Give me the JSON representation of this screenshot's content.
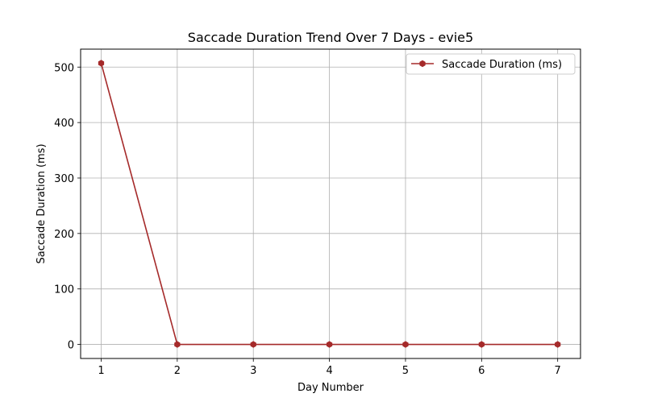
{
  "chart_data": {
    "type": "line",
    "title": "Saccade Duration Trend Over 7 Days - evie5",
    "xlabel": "Day Number",
    "ylabel": "Saccade Duration (ms)",
    "x": [
      1,
      2,
      3,
      4,
      5,
      6,
      7
    ],
    "series": [
      {
        "name": "Saccade Duration (ms)",
        "values": [
          507,
          0,
          0,
          0,
          0,
          0,
          0
        ],
        "color": "#a52a2a",
        "marker": "hexagon"
      }
    ],
    "xlim": [
      0.73,
      7.3
    ],
    "ylim": [
      -25.35,
      532.35
    ],
    "xticks": [
      1,
      2,
      3,
      4,
      5,
      6,
      7
    ],
    "yticks": [
      0,
      100,
      200,
      300,
      400,
      500
    ],
    "grid": true,
    "legend": "top-right"
  }
}
